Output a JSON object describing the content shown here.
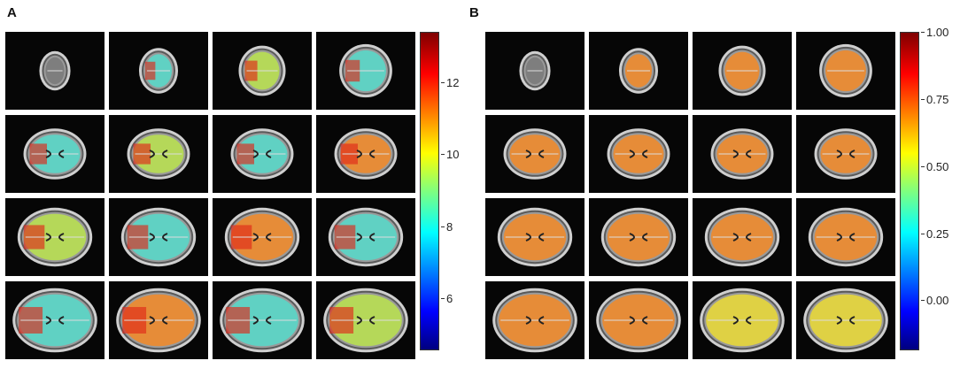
{
  "panels": [
    {
      "letter": "A",
      "colorbar": {
        "ticks": [
          {
            "label": "12",
            "value": 12
          },
          {
            "label": "10",
            "value": 10
          },
          {
            "label": "8",
            "value": 8
          },
          {
            "label": "6",
            "value": 6
          }
        ],
        "range": [
          4.6,
          13.4
        ]
      },
      "overlay_level": "heterogeneous"
    },
    {
      "letter": "B",
      "colorbar": {
        "ticks": [
          {
            "label": "1.00",
            "value": 1.0
          },
          {
            "label": "0.75",
            "value": 0.75
          },
          {
            "label": "0.50",
            "value": 0.5
          },
          {
            "label": "0.25",
            "value": 0.25
          },
          {
            "label": "0.00",
            "value": 0.0
          }
        ],
        "range": [
          -0.18,
          1.0
        ]
      },
      "overlay_level": "uniform-orange"
    }
  ],
  "colors": {
    "background": "#ffffff",
    "tile_bg": "#060606",
    "skull": "#d8d8d8",
    "overlay_orange": "#f08a2a",
    "overlay_red": "#e02818",
    "overlay_cyan": "#58d8c8",
    "overlay_green": "#b8e050"
  }
}
